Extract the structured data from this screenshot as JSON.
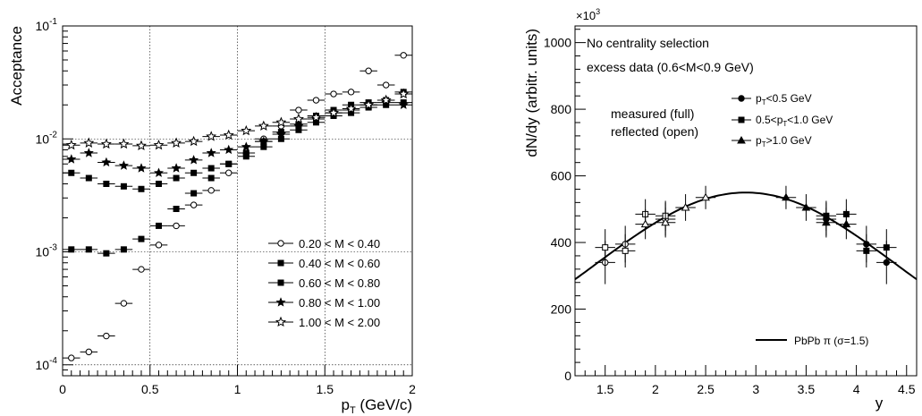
{
  "chart_data": [
    {
      "type": "scatter",
      "title": "",
      "xlabel": "p",
      "xlabel_sub": "T",
      "xlabel_unit": " (GeV/c)",
      "ylabel": "Acceptance",
      "xlim": [
        0,
        2
      ],
      "ylim": [
        8e-05,
        0.1
      ],
      "yscale": "log",
      "grid": true,
      "legend_position": "bottom-right",
      "x_ticks": [
        "0",
        "0.5",
        "1",
        "1.5",
        "2"
      ],
      "y_ticks": [
        {
          "base": "10",
          "exp": "-4"
        },
        {
          "base": "10",
          "exp": "-3"
        },
        {
          "base": "10",
          "exp": "-2"
        },
        {
          "base": "10",
          "exp": "-1"
        }
      ],
      "series": [
        {
          "name": "0.20 < M < 0.40",
          "marker": "circle-open",
          "x": [
            0.05,
            0.15,
            0.25,
            0.35,
            0.45,
            0.55,
            0.65,
            0.75,
            0.85,
            0.95,
            1.05,
            1.15,
            1.25,
            1.35,
            1.45,
            1.55,
            1.65,
            1.75,
            1.85,
            1.95
          ],
          "y": [
            0.000115,
            0.00013,
            0.00018,
            0.00035,
            0.0007,
            0.00115,
            0.0017,
            0.0026,
            0.0035,
            0.005,
            0.0075,
            0.01,
            0.013,
            0.018,
            0.022,
            0.025,
            0.026,
            0.04,
            0.03,
            0.055
          ]
        },
        {
          "name": "0.40 < M < 0.60",
          "marker": "square-filled",
          "x": [
            0.05,
            0.15,
            0.25,
            0.35,
            0.45,
            0.55,
            0.65,
            0.75,
            0.85,
            0.95,
            1.05,
            1.15,
            1.25,
            1.35,
            1.45,
            1.55,
            1.65,
            1.75,
            1.85,
            1.95
          ],
          "y": [
            0.00105,
            0.00105,
            0.00097,
            0.00105,
            0.0013,
            0.0017,
            0.0024,
            0.0033,
            0.0045,
            0.006,
            0.0075,
            0.0095,
            0.0115,
            0.0135,
            0.016,
            0.018,
            0.02,
            0.021,
            0.022,
            0.026
          ]
        },
        {
          "name": "0.60 < M < 0.80",
          "marker": "square-filled",
          "x": [
            0.05,
            0.15,
            0.25,
            0.35,
            0.45,
            0.55,
            0.65,
            0.75,
            0.85,
            0.95,
            1.05,
            1.15,
            1.25,
            1.35,
            1.45,
            1.55,
            1.65,
            1.75,
            1.85,
            1.95
          ],
          "y": [
            0.005,
            0.0045,
            0.004,
            0.0038,
            0.0036,
            0.004,
            0.0045,
            0.005,
            0.0055,
            0.006,
            0.007,
            0.0085,
            0.01,
            0.012,
            0.014,
            0.016,
            0.017,
            0.019,
            0.02,
            0.021
          ]
        },
        {
          "name": "0.80 < M < 1.00",
          "marker": "star-filled",
          "x": [
            0.05,
            0.15,
            0.25,
            0.35,
            0.45,
            0.55,
            0.65,
            0.75,
            0.85,
            0.95,
            1.05,
            1.15,
            1.25,
            1.35,
            1.45,
            1.55,
            1.65,
            1.75,
            1.85,
            1.95
          ],
          "y": [
            0.0066,
            0.0075,
            0.0062,
            0.0058,
            0.0055,
            0.005,
            0.0055,
            0.0065,
            0.0075,
            0.008,
            0.0085,
            0.0095,
            0.011,
            0.013,
            0.015,
            0.017,
            0.018,
            0.02,
            0.021,
            0.02
          ]
        },
        {
          "name": "1.00 < M < 2.00",
          "marker": "star-open",
          "x": [
            0.05,
            0.15,
            0.25,
            0.35,
            0.45,
            0.55,
            0.65,
            0.75,
            0.85,
            0.95,
            1.05,
            1.15,
            1.25,
            1.35,
            1.45,
            1.55,
            1.65,
            1.75,
            1.85,
            1.95
          ],
          "y": [
            0.0088,
            0.0092,
            0.009,
            0.009,
            0.0087,
            0.0088,
            0.0092,
            0.0095,
            0.0105,
            0.0108,
            0.0118,
            0.013,
            0.014,
            0.015,
            0.0155,
            0.017,
            0.0185,
            0.02,
            0.022,
            0.025
          ]
        }
      ]
    },
    {
      "type": "scatter",
      "title": "",
      "xlabel": "y",
      "ylabel": "dN/dy (arbitr. units)",
      "y_multiplier": {
        "base": "×10",
        "exp": "3"
      },
      "xlim": [
        1.2,
        4.6
      ],
      "ylim": [
        0,
        1050
      ],
      "grid": false,
      "x_ticks": [
        "1.5",
        "2",
        "2.5",
        "3",
        "3.5",
        "4",
        "4.5"
      ],
      "y_ticks": [
        "0",
        "200",
        "400",
        "600",
        "800",
        "1000"
      ],
      "annotations": [
        "No centrality selection",
        "excess data (0.6<M<0.9 GeV)",
        "measured (full)",
        "reflected (open)"
      ],
      "legend_position": "top-right",
      "legend": [
        {
          "marker": "circle-filled",
          "pre": "p",
          "sub": "T",
          "post": "<0.5 GeV"
        },
        {
          "marker": "square-filled",
          "pre": "0.5<p",
          "sub": "T",
          "post": "<1.0 GeV"
        },
        {
          "marker": "triangle-filled",
          "pre": "p",
          "sub": "T",
          "post": ">1.0 GeV"
        }
      ],
      "fit_label": "PbPb π (σ=1.5)",
      "fit": {
        "center": 2.9,
        "amplitude": 550,
        "sigma": 1.5
      },
      "series": [
        {
          "name": "pT<0.5 GeV, measured",
          "marker": "circle-filled",
          "x": [
            3.7,
            4.1,
            4.3
          ],
          "y": [
            470,
            395,
            340
          ],
          "err": [
            50,
            55,
            65
          ]
        },
        {
          "name": "pT<0.5 GeV, reflected",
          "marker": "circle-open",
          "x": [
            1.5,
            1.7,
            2.1
          ],
          "y": [
            340,
            395,
            470
          ],
          "err": [
            65,
            55,
            50
          ]
        },
        {
          "name": "0.5<pT<1.0 GeV, measured",
          "marker": "square-filled",
          "x": [
            3.7,
            3.9,
            4.1,
            4.3
          ],
          "y": [
            480,
            485,
            375,
            385
          ],
          "err": [
            45,
            45,
            50,
            55
          ]
        },
        {
          "name": "0.5<pT<1.0 GeV, reflected",
          "marker": "square-open",
          "x": [
            1.5,
            1.7,
            1.9,
            2.1
          ],
          "y": [
            385,
            375,
            485,
            480
          ],
          "err": [
            55,
            50,
            45,
            45
          ]
        },
        {
          "name": "pT>1.0 GeV, measured",
          "marker": "triangle-filled",
          "x": [
            3.3,
            3.5,
            3.7,
            3.9
          ],
          "y": [
            535,
            505,
            460,
            455
          ],
          "err": [
            35,
            40,
            45,
            45
          ]
        },
        {
          "name": "pT>1.0 GeV, reflected",
          "marker": "triangle-open",
          "x": [
            1.9,
            2.1,
            2.3,
            2.5
          ],
          "y": [
            455,
            460,
            505,
            535
          ],
          "err": [
            45,
            45,
            40,
            35
          ]
        }
      ]
    }
  ]
}
